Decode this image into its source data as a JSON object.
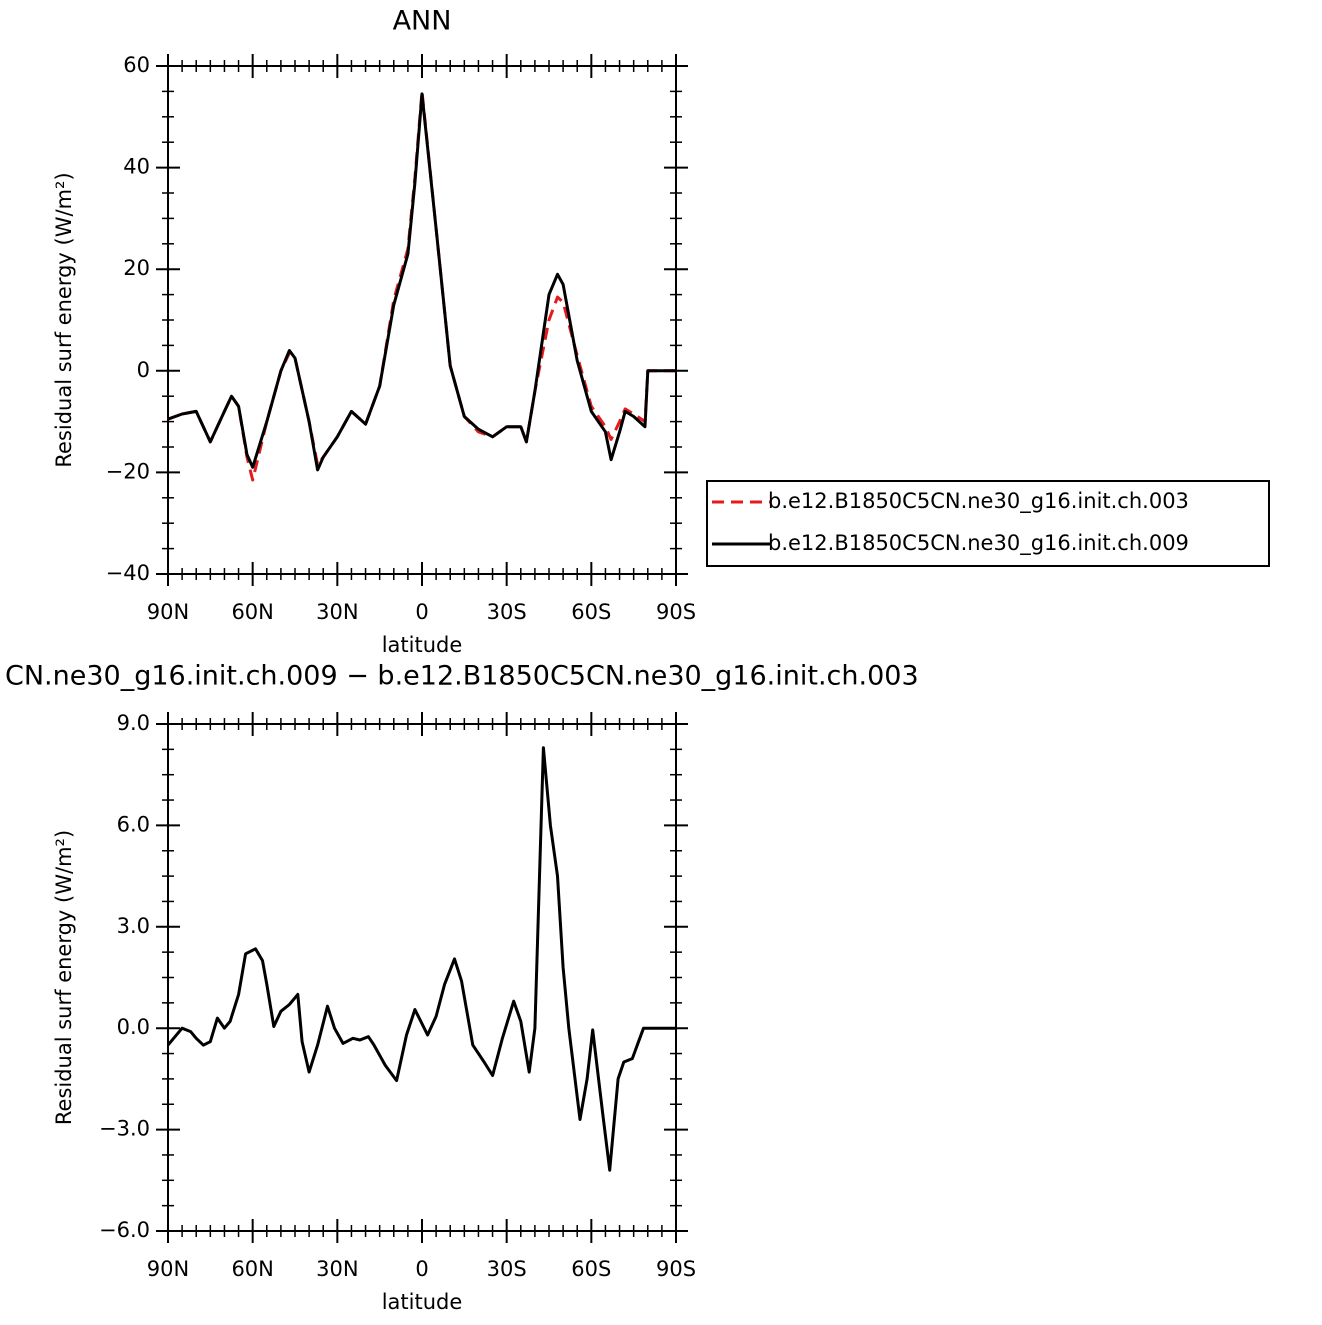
{
  "chart_data": [
    {
      "type": "line",
      "title": "ANN",
      "xlabel": "latitude",
      "ylabel": "Residual surf energy (W/m²)",
      "x": [
        90,
        85,
        80,
        75,
        70,
        67.5,
        65,
        62,
        60,
        55,
        50,
        47,
        45,
        40,
        37,
        35,
        30,
        25,
        20,
        15,
        10,
        5,
        2.5,
        0,
        -5,
        -10,
        -15,
        -20,
        -25,
        -30,
        -35,
        -37,
        -40,
        -45,
        -48,
        -50,
        -55,
        -60,
        -65,
        -67,
        -70,
        -72,
        -75,
        -79,
        -80,
        -85,
        -90
      ],
      "series": [
        {
          "name": "b.e12.B1850C5CN.ne30_g16.init.ch.003",
          "color": "#e41a1c",
          "dash": true,
          "values": [
            -9.5,
            -8.5,
            -8,
            -14,
            -8,
            -5,
            -7,
            -17,
            -21.5,
            -10,
            0,
            3.5,
            2.5,
            -10,
            -18.5,
            -17,
            -13,
            -8,
            -10.5,
            -3,
            14,
            24,
            38,
            55,
            28,
            1,
            -9,
            -12,
            -13,
            -11,
            -11,
            -14,
            -4,
            10,
            14.5,
            13.5,
            3,
            -7,
            -11,
            -13.5,
            -10,
            -7.5,
            -8.5,
            -10,
            0,
            0,
            0
          ]
        },
        {
          "name": "b.e12.B1850C5CN.ne30_g16.init.ch.009",
          "color": "#000000",
          "dash": false,
          "values": [
            -9.5,
            -8.5,
            -8,
            -14,
            -8,
            -5,
            -7,
            -16.5,
            -19,
            -10,
            0,
            4,
            2.5,
            -10,
            -19.5,
            -17,
            -13,
            -8,
            -10.5,
            -3,
            13,
            23,
            37,
            54.5,
            28,
            1,
            -9,
            -11.5,
            -13,
            -11,
            -11,
            -14,
            -4,
            15,
            19,
            17,
            2,
            -8,
            -12,
            -17.5,
            -12,
            -8,
            -9,
            -11,
            0,
            0,
            0
          ]
        }
      ],
      "xlim": [
        90,
        -90
      ],
      "xticks": [
        {
          "value": 90,
          "label": "90N"
        },
        {
          "value": 60,
          "label": "60N"
        },
        {
          "value": 30,
          "label": "30N"
        },
        0,
        {
          "value": -30,
          "label": "30S"
        },
        {
          "value": -60,
          "label": "60S"
        },
        {
          "value": -90,
          "label": "90S"
        }
      ],
      "ylim": [
        -40,
        60
      ],
      "yticks": [
        {
          "value": -40,
          "label": "−40"
        },
        {
          "value": -20,
          "label": "−20"
        },
        0,
        20,
        40,
        60
      ],
      "legend": "right"
    },
    {
      "type": "line",
      "title": "CN.ne30_g16.init.ch.009 − b.e12.B1850C5CN.ne30_g16.init.ch.003",
      "xlabel": "latitude",
      "ylabel": "Residual surf energy (W/m²)",
      "x": [
        90,
        85,
        82,
        80,
        77.5,
        75,
        72.5,
        70,
        68,
        65,
        62.5,
        59,
        56.5,
        55,
        52.5,
        50,
        47,
        44,
        42.5,
        40,
        37,
        33.5,
        31,
        28,
        24.5,
        22,
        19,
        17,
        13,
        9,
        5.5,
        2.5,
        1,
        -2,
        -5,
        -8,
        -11.5,
        -14,
        -18,
        -22,
        -25,
        -28.5,
        -32.5,
        -35,
        -38,
        -40,
        -43,
        -45.5,
        -48,
        -50,
        -52,
        -56,
        -58.5,
        -60.5,
        -64,
        -66.5,
        -69.5,
        -71.5,
        -74.5,
        -78.5,
        -84.5,
        -90
      ],
      "series": [
        {
          "color": "#000000",
          "dash": false,
          "values": [
            -0.5,
            0,
            -0.1,
            -0.3,
            -0.5,
            -0.4,
            0.3,
            0,
            0.2,
            1,
            2.2,
            2.35,
            2,
            1.3,
            0.05,
            0.5,
            0.7,
            1,
            -0.4,
            -1.3,
            -0.5,
            0.65,
            0,
            -0.45,
            -0.3,
            -0.35,
            -0.25,
            -0.5,
            -1.1,
            -1.55,
            -0.2,
            0.55,
            0.3,
            -0.2,
            0.35,
            1.3,
            2.05,
            1.4,
            -0.5,
            -1,
            -1.4,
            -0.3,
            0.8,
            0.2,
            -1.3,
            0,
            8.3,
            6,
            4.5,
            1.8,
            0,
            -2.7,
            -1.5,
            -0.05,
            -2.5,
            -4.2,
            -1.5,
            -1,
            -0.9,
            0,
            0,
            0
          ]
        }
      ],
      "xlim": [
        90,
        -90
      ],
      "xticks": [
        {
          "value": 90,
          "label": "90N"
        },
        {
          "value": 60,
          "label": "60N"
        },
        {
          "value": 30,
          "label": "30N"
        },
        0,
        {
          "value": -30,
          "label": "30S"
        },
        {
          "value": -60,
          "label": "60S"
        },
        {
          "value": -90,
          "label": "90S"
        }
      ],
      "ylim": [
        -6,
        9
      ],
      "yticks": [
        {
          "value": -6,
          "label": "−6.0"
        },
        {
          "value": -3,
          "label": "−3.0"
        },
        {
          "value": 0,
          "label": "0.0"
        },
        {
          "value": 3,
          "label": "3.0"
        },
        {
          "value": 6,
          "label": "6.0"
        },
        {
          "value": 9,
          "label": "9.0"
        }
      ]
    }
  ]
}
